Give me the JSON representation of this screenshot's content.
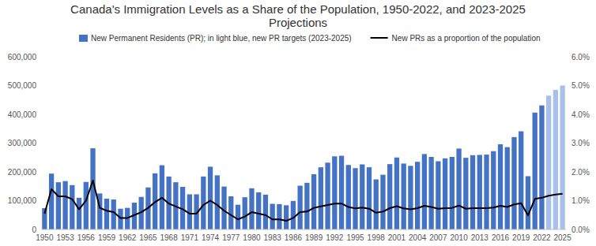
{
  "chart_data": {
    "type": "bar",
    "title": "Canada's Immigration Levels as a Share of the Population, 1950-2022, and 2023-2025 Projections",
    "categories": [
      "1950",
      null,
      null,
      "1953",
      null,
      null,
      "1956",
      null,
      null,
      "1959",
      null,
      null,
      "1962",
      null,
      null,
      "1965",
      null,
      null,
      "1968",
      null,
      null,
      "1971",
      null,
      null,
      "1974",
      null,
      null,
      "1977",
      null,
      null,
      "1980",
      null,
      null,
      "1983",
      null,
      null,
      "1986",
      null,
      null,
      "1989",
      null,
      null,
      "1992",
      null,
      null,
      "1995",
      null,
      null,
      "1998",
      null,
      null,
      "2001",
      null,
      null,
      "2004",
      null,
      null,
      "2007",
      null,
      null,
      "2010",
      null,
      null,
      "2013",
      null,
      null,
      "2016",
      null,
      null,
      "2019",
      null,
      null,
      "2022",
      null,
      null,
      "2025"
    ],
    "series": [
      {
        "name": "New Permanent Residents (PR); in light blue, new PR targets (2023-2025)",
        "type": "bar",
        "colors": [
          "#4472c4",
          "#4472c4",
          "#4472c4",
          "#4472c4",
          "#4472c4",
          "#4472c4",
          "#4472c4",
          "#4472c4",
          "#4472c4",
          "#4472c4",
          "#4472c4",
          "#4472c4",
          "#4472c4",
          "#4472c4",
          "#4472c4",
          "#4472c4",
          "#4472c4",
          "#4472c4",
          "#4472c4",
          "#4472c4",
          "#4472c4",
          "#4472c4",
          "#4472c4",
          "#4472c4",
          "#4472c4",
          "#4472c4",
          "#4472c4",
          "#4472c4",
          "#4472c4",
          "#4472c4",
          "#4472c4",
          "#4472c4",
          "#4472c4",
          "#4472c4",
          "#4472c4",
          "#4472c4",
          "#4472c4",
          "#4472c4",
          "#4472c4",
          "#4472c4",
          "#4472c4",
          "#4472c4",
          "#4472c4",
          "#4472c4",
          "#4472c4",
          "#4472c4",
          "#4472c4",
          "#4472c4",
          "#4472c4",
          "#4472c4",
          "#4472c4",
          "#4472c4",
          "#4472c4",
          "#4472c4",
          "#4472c4",
          "#4472c4",
          "#4472c4",
          "#4472c4",
          "#4472c4",
          "#4472c4",
          "#4472c4",
          "#4472c4",
          "#4472c4",
          "#4472c4",
          "#4472c4",
          "#4472c4",
          "#4472c4",
          "#4472c4",
          "#4472c4",
          "#4472c4",
          "#4472c4",
          "#4472c4",
          "#4472c4",
          "#a9c0ea",
          "#a9c0ea",
          "#a9c0ea"
        ],
        "values": [
          74000,
          194000,
          164000,
          168000,
          154000,
          110000,
          165000,
          282000,
          125000,
          107000,
          104000,
          72000,
          75000,
          93000,
          113000,
          146000,
          195000,
          223000,
          184000,
          164000,
          148000,
          122000,
          122000,
          184000,
          218000,
          188000,
          149000,
          115000,
          86000,
          112000,
          143000,
          129000,
          121000,
          89000,
          88000,
          84000,
          99000,
          152000,
          162000,
          192000,
          216000,
          232000,
          254000,
          256000,
          224000,
          213000,
          226000,
          216000,
          174000,
          190000,
          227000,
          250000,
          229000,
          221000,
          235000,
          262000,
          252000,
          237000,
          247000,
          252000,
          281000,
          249000,
          258000,
          259000,
          260000,
          272000,
          296000,
          286000,
          321000,
          341000,
          185000,
          406000,
          431000,
          465000,
          485000,
          500000
        ]
      },
      {
        "name": "New PRs as a proportion of the population",
        "type": "line",
        "color": "#000000",
        "axis": "y2",
        "values": [
          0.55,
          1.4,
          1.15,
          1.15,
          1.05,
          0.7,
          1.0,
          1.7,
          0.75,
          0.65,
          0.6,
          0.4,
          0.4,
          0.5,
          0.6,
          0.75,
          0.95,
          1.1,
          0.9,
          0.8,
          0.7,
          0.55,
          0.55,
          0.85,
          1.0,
          0.85,
          0.65,
          0.5,
          0.35,
          0.45,
          0.6,
          0.55,
          0.5,
          0.35,
          0.35,
          0.3,
          0.4,
          0.6,
          0.62,
          0.75,
          0.8,
          0.85,
          0.9,
          0.9,
          0.78,
          0.73,
          0.76,
          0.72,
          0.58,
          0.62,
          0.74,
          0.81,
          0.73,
          0.7,
          0.74,
          0.82,
          0.78,
          0.72,
          0.74,
          0.75,
          0.83,
          0.72,
          0.74,
          0.74,
          0.74,
          0.76,
          0.82,
          0.78,
          0.87,
          0.91,
          0.49,
          1.06,
          1.1,
          1.17,
          1.21,
          1.24
        ]
      }
    ],
    "ylim": [
      0,
      600000
    ],
    "yticks": [
      0,
      {
        "value": 100000,
        "label": "100,000"
      },
      {
        "value": 200000,
        "label": "200,000"
      },
      {
        "value": 300000,
        "label": "300,000"
      },
      {
        "value": 400000,
        "label": "400,000"
      },
      {
        "value": 500000,
        "label": "500,000"
      },
      {
        "value": 600000,
        "label": "600,000"
      }
    ],
    "y2lim": [
      0,
      6
    ],
    "y2ticks": [
      {
        "value": 0,
        "label": "0.0%"
      },
      {
        "value": 1,
        "label": "1.0%"
      },
      {
        "value": 2,
        "label": "2.0%"
      },
      {
        "value": 3,
        "label": "3.0%"
      },
      {
        "value": 4,
        "label": "4.0%"
      },
      {
        "value": 5,
        "label": "5.0%"
      },
      {
        "value": 6,
        "label": "6.0%"
      }
    ],
    "grid": false,
    "legend": "top"
  }
}
